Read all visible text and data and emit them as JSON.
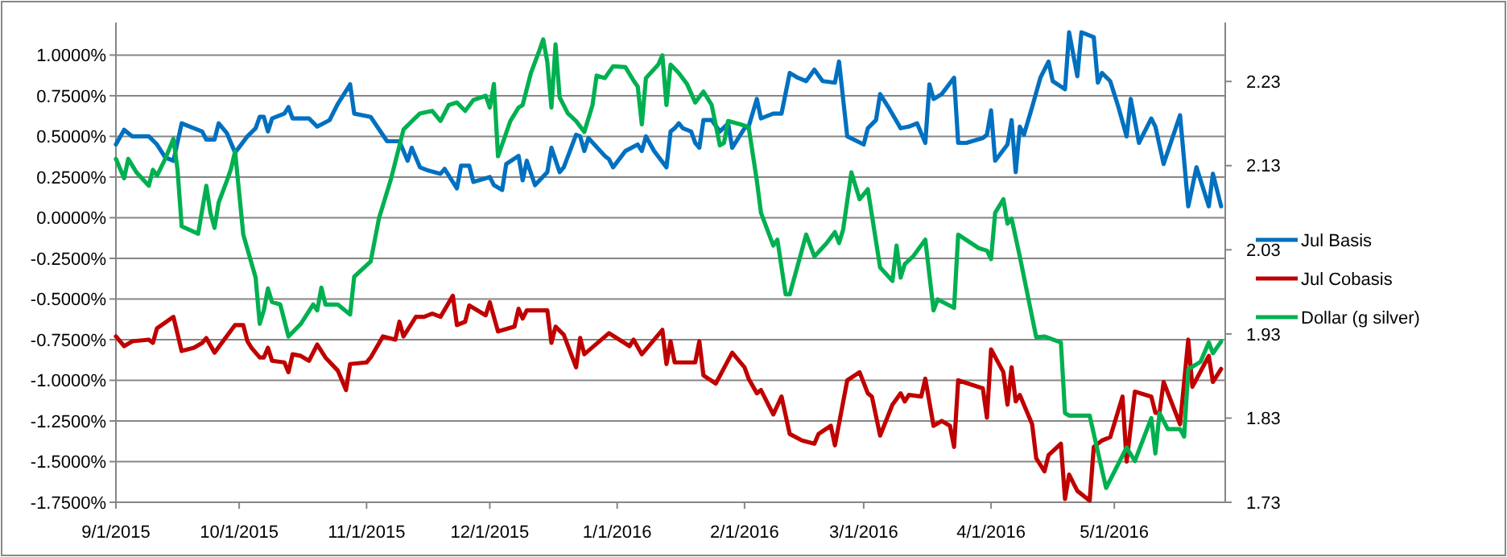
{
  "chart_data": {
    "type": "line",
    "xlim": [
      "2015-09-01",
      "2016-05-28"
    ],
    "xticks": [
      {
        "value": "2015-09-01",
        "label": "9/1/2015"
      },
      {
        "value": "2015-10-01",
        "label": "10/1/2015"
      },
      {
        "value": "2015-11-01",
        "label": "11/1/2015"
      },
      {
        "value": "2015-12-01",
        "label": "12/1/2015"
      },
      {
        "value": "2016-01-01",
        "label": "1/1/2016"
      },
      {
        "value": "2016-02-01",
        "label": "2/1/2016"
      },
      {
        "value": "2016-03-01",
        "label": "3/1/2016"
      },
      {
        "value": "2016-04-01",
        "label": "4/1/2016"
      },
      {
        "value": "2016-05-01",
        "label": "5/1/2016"
      }
    ],
    "ylim": [
      -1.75,
      1.2
    ],
    "yticks": [
      {
        "value": 1,
        "label": "1.0000%"
      },
      {
        "value": 0.75,
        "label": "0.7500%"
      },
      {
        "value": 0.5,
        "label": "0.5000%"
      },
      {
        "value": 0.25,
        "label": "0.2500%"
      },
      {
        "value": 0,
        "label": "0.0000%"
      },
      {
        "value": -0.25,
        "label": "-0.2500%"
      },
      {
        "value": -0.5,
        "label": "-0.5000%"
      },
      {
        "value": -0.75,
        "label": "-0.7500%"
      },
      {
        "value": -1,
        "label": "-1.0000%"
      },
      {
        "value": -1.25,
        "label": "-1.2500%"
      },
      {
        "value": -1.5,
        "label": "-1.5000%"
      },
      {
        "value": -1.75,
        "label": "-1.7500%"
      }
    ],
    "y2lim": [
      1.73,
      2.3
    ],
    "y2ticks": [
      1.73,
      1.83,
      1.93,
      2.03,
      2.13,
      2.23
    ],
    "grid": "y",
    "legend": "right",
    "line_style": "solid",
    "marker": "none",
    "series": [
      {
        "name": "Jul Basis",
        "color": "#0070c0",
        "x": [
          "2015-09-01",
          "2015-09-03",
          "2015-09-05",
          "2015-09-09",
          "2015-09-11",
          "2015-09-13",
          "2015-09-15",
          "2015-09-17",
          "2015-09-20",
          "2015-09-22",
          "2015-09-23",
          "2015-09-25",
          "2015-09-26",
          "2015-09-28",
          "2015-09-30",
          "2015-10-03",
          "2015-10-05",
          "2015-10-06",
          "2015-10-07",
          "2015-10-08",
          "2015-10-09",
          "2015-10-12",
          "2015-10-13",
          "2015-10-14",
          "2015-10-18",
          "2015-10-20",
          "2015-10-23",
          "2015-10-25",
          "2015-10-28",
          "2015-10-29",
          "2015-11-02",
          "2015-11-06",
          "2015-11-09",
          "2015-11-11",
          "2015-11-12",
          "2015-11-14",
          "2015-11-16",
          "2015-11-19",
          "2015-11-20",
          "2015-11-23",
          "2015-11-24",
          "2015-11-26",
          "2015-11-27",
          "2015-12-01",
          "2015-12-02",
          "2015-12-04",
          "2015-12-05",
          "2015-12-08",
          "2015-12-09",
          "2015-12-10",
          "2015-12-12",
          "2015-12-15",
          "2015-12-16",
          "2015-12-18",
          "2015-12-19",
          "2015-12-22",
          "2015-12-23",
          "2015-12-24",
          "2015-12-25",
          "2015-12-29",
          "2015-12-30",
          "2015-12-31",
          "2016-01-03",
          "2016-01-06",
          "2016-01-07",
          "2016-01-08",
          "2016-01-10",
          "2016-01-13",
          "2016-01-14",
          "2016-01-15",
          "2016-01-16",
          "2016-01-17",
          "2016-01-19",
          "2016-01-20",
          "2016-01-21",
          "2016-01-22",
          "2016-01-24",
          "2016-01-26",
          "2016-01-28",
          "2016-01-29",
          "2016-02-01",
          "2016-02-02",
          "2016-02-04",
          "2016-02-05",
          "2016-02-08",
          "2016-02-10",
          "2016-02-12",
          "2016-02-14",
          "2016-02-16",
          "2016-02-18",
          "2016-02-20",
          "2016-02-23",
          "2016-02-24",
          "2016-02-26",
          "2016-03-01",
          "2016-03-02",
          "2016-03-04",
          "2016-03-05",
          "2016-03-07",
          "2016-03-10",
          "2016-03-12",
          "2016-03-14",
          "2016-03-16",
          "2016-03-17",
          "2016-03-18",
          "2016-03-20",
          "2016-03-23",
          "2016-03-24",
          "2016-03-26",
          "2016-03-30",
          "2016-03-31",
          "2016-04-01",
          "2016-04-02",
          "2016-04-05",
          "2016-04-06",
          "2016-04-07",
          "2016-04-08",
          "2016-04-09",
          "2016-04-11",
          "2016-04-13",
          "2016-04-15",
          "2016-04-16",
          "2016-04-19",
          "2016-04-20",
          "2016-04-22",
          "2016-04-23",
          "2016-04-26",
          "2016-04-27",
          "2016-04-28",
          "2016-04-30",
          "2016-05-02",
          "2016-05-04",
          "2016-05-05",
          "2016-05-07",
          "2016-05-10",
          "2016-05-11",
          "2016-05-13",
          "2016-05-17",
          "2016-05-19",
          "2016-05-21",
          "2016-05-24",
          "2016-05-25",
          "2016-05-27"
        ],
        "values": [
          0.45,
          0.54,
          0.5,
          0.5,
          0.45,
          0.37,
          0.35,
          0.58,
          0.55,
          0.53,
          0.48,
          0.48,
          0.58,
          0.52,
          0.4,
          0.5,
          0.55,
          0.62,
          0.62,
          0.53,
          0.61,
          0.64,
          0.68,
          0.61,
          0.61,
          0.56,
          0.6,
          0.7,
          0.82,
          0.64,
          0.62,
          0.47,
          0.47,
          0.35,
          0.43,
          0.31,
          0.29,
          0.27,
          0.3,
          0.18,
          0.32,
          0.32,
          0.22,
          0.25,
          0.2,
          0.17,
          0.33,
          0.38,
          0.23,
          0.35,
          0.2,
          0.28,
          0.43,
          0.28,
          0.31,
          0.51,
          0.5,
          0.41,
          0.49,
          0.38,
          0.36,
          0.31,
          0.41,
          0.45,
          0.41,
          0.5,
          0.41,
          0.31,
          0.53,
          0.55,
          0.58,
          0.55,
          0.53,
          0.46,
          0.43,
          0.6,
          0.6,
          0.53,
          0.58,
          0.43,
          0.55,
          0.56,
          0.73,
          0.61,
          0.64,
          0.64,
          0.89,
          0.86,
          0.84,
          0.91,
          0.84,
          0.83,
          0.96,
          0.5,
          0.45,
          0.55,
          0.6,
          0.76,
          0.68,
          0.55,
          0.56,
          0.58,
          0.46,
          0.82,
          0.73,
          0.76,
          0.86,
          0.46,
          0.46,
          0.49,
          0.51,
          0.66,
          0.35,
          0.45,
          0.6,
          0.28,
          0.56,
          0.51,
          0.68,
          0.86,
          0.96,
          0.84,
          0.79,
          1.14,
          0.87,
          1.14,
          1.11,
          0.83,
          0.89,
          0.84,
          0.68,
          0.5,
          0.73,
          0.46,
          0.61,
          0.56,
          0.33,
          0.63,
          0.07,
          0.31,
          0.07,
          0.27,
          0.07
        ]
      },
      {
        "name": "Jul Cobasis",
        "color": "#c00000",
        "x": [
          "2015-09-01",
          "2015-09-03",
          "2015-09-05",
          "2015-09-09",
          "2015-09-10",
          "2015-09-11",
          "2015-09-15",
          "2015-09-17",
          "2015-09-20",
          "2015-09-22",
          "2015-09-23",
          "2015-09-25",
          "2015-09-30",
          "2015-10-02",
          "2015-10-03",
          "2015-10-04",
          "2015-10-06",
          "2015-10-07",
          "2015-10-08",
          "2015-10-09",
          "2015-10-12",
          "2015-10-13",
          "2015-10-14",
          "2015-10-16",
          "2015-10-18",
          "2015-10-20",
          "2015-10-22",
          "2015-10-25",
          "2015-10-27",
          "2015-10-28",
          "2015-11-01",
          "2015-11-02",
          "2015-11-05",
          "2015-11-08",
          "2015-11-09",
          "2015-11-10",
          "2015-11-13",
          "2015-11-15",
          "2015-11-17",
          "2015-11-19",
          "2015-11-22",
          "2015-11-23",
          "2015-11-25",
          "2015-11-26",
          "2015-11-30",
          "2015-12-01",
          "2015-12-03",
          "2015-12-07",
          "2015-12-08",
          "2015-12-09",
          "2015-12-10",
          "2015-12-15",
          "2015-12-16",
          "2015-12-17",
          "2015-12-19",
          "2015-12-22",
          "2015-12-23",
          "2015-12-24",
          "2015-12-30",
          "2016-01-04",
          "2016-01-05",
          "2016-01-07",
          "2016-01-12",
          "2016-01-13",
          "2016-01-14",
          "2016-01-15",
          "2016-01-20",
          "2016-01-21",
          "2016-01-22",
          "2016-01-25",
          "2016-01-29",
          "2016-02-01",
          "2016-02-02",
          "2016-02-04",
          "2016-02-05",
          "2016-02-08",
          "2016-02-10",
          "2016-02-12",
          "2016-02-15",
          "2016-02-18",
          "2016-02-19",
          "2016-02-22",
          "2016-02-23",
          "2016-02-26",
          "2016-02-29",
          "2016-03-02",
          "2016-03-03",
          "2016-03-05",
          "2016-03-08",
          "2016-03-10",
          "2016-03-11",
          "2016-03-12",
          "2016-03-15",
          "2016-03-16",
          "2016-03-18",
          "2016-03-20",
          "2016-03-22",
          "2016-03-23",
          "2016-03-24",
          "2016-03-30",
          "2016-03-31",
          "2016-04-01",
          "2016-04-04",
          "2016-04-05",
          "2016-04-06",
          "2016-04-07",
          "2016-04-08",
          "2016-04-11",
          "2016-04-12",
          "2016-04-14",
          "2016-04-15",
          "2016-04-18",
          "2016-04-19",
          "2016-04-20",
          "2016-04-22",
          "2016-04-25",
          "2016-04-26",
          "2016-04-28",
          "2016-04-30",
          "2016-05-03",
          "2016-05-04",
          "2016-05-06",
          "2016-05-10",
          "2016-05-11",
          "2016-05-12",
          "2016-05-13",
          "2016-05-17",
          "2016-05-19",
          "2016-05-20",
          "2016-05-24",
          "2016-05-25",
          "2016-05-27"
        ],
        "values": [
          -0.73,
          -0.79,
          -0.76,
          -0.75,
          -0.77,
          -0.68,
          -0.61,
          -0.82,
          -0.8,
          -0.77,
          -0.74,
          -0.83,
          -0.66,
          -0.66,
          -0.76,
          -0.8,
          -0.86,
          -0.86,
          -0.8,
          -0.88,
          -0.89,
          -0.95,
          -0.84,
          -0.85,
          -0.88,
          -0.78,
          -0.86,
          -0.94,
          -1.06,
          -0.9,
          -0.89,
          -0.86,
          -0.73,
          -0.75,
          -0.64,
          -0.73,
          -0.61,
          -0.61,
          -0.59,
          -0.61,
          -0.48,
          -0.66,
          -0.64,
          -0.54,
          -0.6,
          -0.52,
          -0.7,
          -0.67,
          -0.56,
          -0.62,
          -0.57,
          -0.57,
          -0.77,
          -0.67,
          -0.72,
          -0.92,
          -0.74,
          -0.84,
          -0.71,
          -0.79,
          -0.75,
          -0.84,
          -0.69,
          -0.9,
          -0.76,
          -0.89,
          -0.89,
          -0.76,
          -0.97,
          -1.02,
          -0.83,
          -0.92,
          -0.99,
          -1.08,
          -1.06,
          -1.21,
          -1.1,
          -1.33,
          -1.37,
          -1.39,
          -1.33,
          -1.28,
          -1.4,
          -1,
          -0.95,
          -1.08,
          -1.1,
          -1.34,
          -1.15,
          -1.08,
          -1.13,
          -1.09,
          -1.1,
          -0.99,
          -1.28,
          -1.25,
          -1.28,
          -1.41,
          -1,
          -1.05,
          -1.23,
          -0.81,
          -0.95,
          -1.15,
          -0.92,
          -1.13,
          -1.09,
          -1.27,
          -1.48,
          -1.56,
          -1.46,
          -1.39,
          -1.73,
          -1.58,
          -1.68,
          -1.74,
          -1.41,
          -1.37,
          -1.35,
          -1.1,
          -1.5,
          -1.07,
          -1.1,
          -1.2,
          -1.2,
          -1.01,
          -1.27,
          -0.75,
          -1.04,
          -0.85,
          -1.01,
          -0.93
        ]
      },
      {
        "name": "Dollar (g silver)",
        "color": "#00b050",
        "axis": "y2",
        "x": [
          "2015-09-01",
          "2015-09-03",
          "2015-09-04",
          "2015-09-06",
          "2015-09-09",
          "2015-09-10",
          "2015-09-11",
          "2015-09-13",
          "2015-09-15",
          "2015-09-16",
          "2015-09-17",
          "2015-09-21",
          "2015-09-23",
          "2015-09-24",
          "2015-09-25",
          "2015-09-26",
          "2015-09-28",
          "2015-09-29",
          "2015-09-30",
          "2015-10-02",
          "2015-10-05",
          "2015-10-06",
          "2015-10-07",
          "2015-10-08",
          "2015-10-09",
          "2015-10-11",
          "2015-10-13",
          "2015-10-16",
          "2015-10-19",
          "2015-10-20",
          "2015-10-21",
          "2015-10-22",
          "2015-10-25",
          "2015-10-28",
          "2015-10-29",
          "2015-11-02",
          "2015-11-04",
          "2015-11-07",
          "2015-11-10",
          "2015-11-14",
          "2015-11-17",
          "2015-11-19",
          "2015-11-21",
          "2015-11-23",
          "2015-11-25",
          "2015-11-27",
          "2015-11-30",
          "2015-12-01",
          "2015-12-02",
          "2015-12-03",
          "2015-12-06",
          "2015-12-08",
          "2015-12-09",
          "2015-12-11",
          "2015-12-13",
          "2015-12-14",
          "2015-12-15",
          "2015-12-16",
          "2015-12-17",
          "2015-12-18",
          "2015-12-20",
          "2015-12-22",
          "2015-12-24",
          "2015-12-26",
          "2015-12-27",
          "2015-12-29",
          "2015-12-31",
          "2016-01-03",
          "2016-01-05",
          "2016-01-06",
          "2016-01-07",
          "2016-01-08",
          "2016-01-11",
          "2016-01-12",
          "2016-01-13",
          "2016-01-14",
          "2016-01-16",
          "2016-01-18",
          "2016-01-20",
          "2016-01-22",
          "2016-01-24",
          "2016-01-26",
          "2016-01-27",
          "2016-01-28",
          "2016-01-31",
          "2016-02-02",
          "2016-02-04",
          "2016-02-05",
          "2016-02-08",
          "2016-02-09",
          "2016-02-11",
          "2016-02-12",
          "2016-02-16",
          "2016-02-18",
          "2016-02-21",
          "2016-02-23",
          "2016-02-24",
          "2016-02-25",
          "2016-02-27",
          "2016-02-29",
          "2016-03-02",
          "2016-03-05",
          "2016-03-08",
          "2016-03-09",
          "2016-03-10",
          "2016-03-11",
          "2016-03-13",
          "2016-03-16",
          "2016-03-18",
          "2016-03-19",
          "2016-03-23",
          "2016-03-24",
          "2016-03-29",
          "2016-03-31",
          "2016-04-01",
          "2016-04-02",
          "2016-04-04",
          "2016-04-05",
          "2016-04-06",
          "2016-04-08",
          "2016-04-12",
          "2016-04-14",
          "2016-04-18",
          "2016-04-19",
          "2016-04-20",
          "2016-04-25",
          "2016-04-29",
          "2016-05-04",
          "2016-05-06",
          "2016-05-10",
          "2016-05-11",
          "2016-05-12",
          "2016-05-14",
          "2016-05-17",
          "2016-05-18",
          "2016-05-19",
          "2016-05-22",
          "2016-05-24",
          "2016-05-25",
          "2016-05-27"
        ],
        "values": [
          2.138,
          2.115,
          2.138,
          2.122,
          2.106,
          2.125,
          2.118,
          2.138,
          2.162,
          2.125,
          2.058,
          2.049,
          2.106,
          2.074,
          2.056,
          2.086,
          2.112,
          2.126,
          2.147,
          2.048,
          1.997,
          1.942,
          1.958,
          1.984,
          1.968,
          1.965,
          1.927,
          1.942,
          1.965,
          1.958,
          1.985,
          1.965,
          1.965,
          1.953,
          1.998,
          2.016,
          2.067,
          2.115,
          2.173,
          2.192,
          2.195,
          2.183,
          2.202,
          2.205,
          2.195,
          2.208,
          2.213,
          2.199,
          2.227,
          2.141,
          2.183,
          2.199,
          2.202,
          2.24,
          2.266,
          2.28,
          2.253,
          2.199,
          2.274,
          2.211,
          2.192,
          2.183,
          2.17,
          2.202,
          2.237,
          2.234,
          2.248,
          2.247,
          2.231,
          2.224,
          2.179,
          2.234,
          2.25,
          2.261,
          2.202,
          2.25,
          2.24,
          2.227,
          2.205,
          2.218,
          2.202,
          2.154,
          2.157,
          2.183,
          2.179,
          2.176,
          2.112,
          2.074,
          2.035,
          2.042,
          1.977,
          1.977,
          2.048,
          2.022,
          2.038,
          2.051,
          2.038,
          2.054,
          2.122,
          2.09,
          2.102,
          2.009,
          1.993,
          2.035,
          1.997,
          2.013,
          2.022,
          2.042,
          1.958,
          1.971,
          1.961,
          2.048,
          2.032,
          2.029,
          2.019,
          2.074,
          2.09,
          2.061,
          2.067,
          2.022,
          1.926,
          1.927,
          1.92,
          1.836,
          1.833,
          1.833,
          1.747,
          1.795,
          1.779,
          1.83,
          1.788,
          1.836,
          1.817,
          1.817,
          1.808,
          1.888,
          1.897,
          1.92,
          1.907,
          1.921
        ]
      }
    ]
  }
}
